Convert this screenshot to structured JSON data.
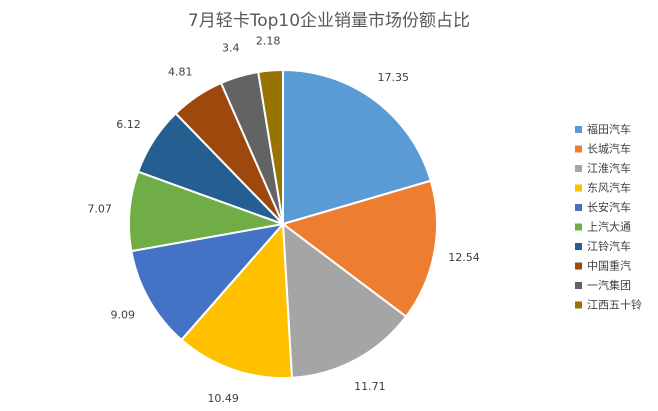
{
  "chart_data": {
    "type": "pie",
    "title": "7月轻卡Top10企业销量市场份额占比",
    "legend_position": "right",
    "categories": [
      "福田汽车",
      "长城汽车",
      "江淮汽车",
      "东风汽车",
      "长安汽车",
      "上汽大通",
      "江铃汽车",
      "中国重汽",
      "一汽集团",
      "江西五十铃"
    ],
    "values": [
      17.35,
      12.54,
      11.71,
      10.49,
      9.09,
      7.07,
      6.12,
      4.81,
      3.4,
      2.18
    ],
    "value_labels": [
      "17.35",
      "12.54",
      "11.71",
      "10.49",
      "9.09",
      "7.07",
      "6.12",
      "4.81",
      "3.4",
      "2.18"
    ],
    "colors": [
      "#5b9bd5",
      "#ed7d31",
      "#a5a5a5",
      "#ffc000",
      "#4472c4",
      "#70ad47",
      "#255e91",
      "#9e480e",
      "#636363",
      "#997300"
    ]
  }
}
